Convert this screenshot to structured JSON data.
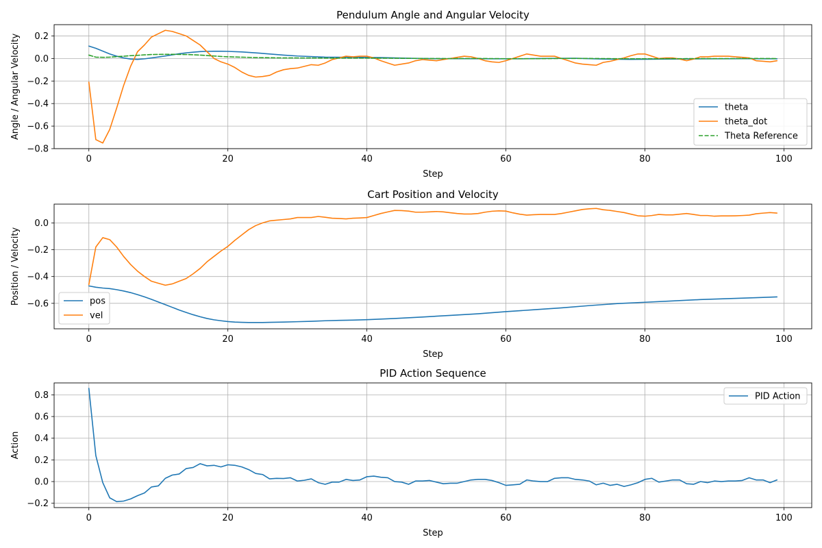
{
  "chart_data": [
    {
      "type": "line",
      "title": "Pendulum Angle and Angular Velocity",
      "xlabel": "Step",
      "ylabel": "Angle / Angular Velocity",
      "xlim": [
        -5,
        104
      ],
      "ylim": [
        -0.8,
        0.3
      ],
      "xticks": [
        0,
        20,
        40,
        60,
        80,
        100
      ],
      "yticks": [
        -0.8,
        -0.6,
        -0.4,
        -0.2,
        0.0,
        0.2
      ],
      "ytick_labels": [
        "−0.8",
        "−0.6",
        "−0.4",
        "−0.2",
        "0.0",
        "0.2"
      ],
      "grid": true,
      "legend_position": "lower-right",
      "series": [
        {
          "name": "theta",
          "color": "#1f77b4",
          "dash": "solid",
          "x": [
            0,
            1,
            2,
            3,
            4,
            5,
            6,
            7,
            8,
            9,
            10,
            11,
            12,
            13,
            14,
            15,
            16,
            17,
            18,
            19,
            20,
            22,
            24,
            26,
            28,
            30,
            34,
            38,
            42,
            46,
            50,
            54,
            58,
            62,
            66,
            70,
            74,
            78,
            82,
            86,
            90,
            94,
            99
          ],
          "values": [
            0.11,
            0.09,
            0.065,
            0.04,
            0.02,
            0.005,
            -0.005,
            -0.008,
            -0.003,
            0.005,
            0.013,
            0.022,
            0.032,
            0.042,
            0.05,
            0.056,
            0.061,
            0.063,
            0.064,
            0.064,
            0.063,
            0.058,
            0.05,
            0.04,
            0.03,
            0.022,
            0.012,
            0.01,
            0.008,
            0.002,
            -0.002,
            -0.002,
            -0.003,
            -0.003,
            0.0,
            0.002,
            -0.005,
            -0.008,
            -0.006,
            -0.004,
            -0.003,
            -0.002,
            -0.003
          ]
        },
        {
          "name": "theta_dot",
          "color": "#ff7f0e",
          "dash": "solid",
          "x": [
            0,
            1,
            2,
            3,
            4,
            5,
            6,
            7,
            8,
            9,
            10,
            11,
            12,
            13,
            14,
            15,
            16,
            17,
            18,
            19,
            20,
            21,
            22,
            23,
            24,
            25,
            26,
            27,
            28,
            29,
            30,
            31,
            32,
            33,
            34,
            35,
            36,
            37,
            38,
            39,
            40,
            41,
            42,
            43,
            44,
            45,
            46,
            47,
            48,
            49,
            50,
            51,
            52,
            53,
            54,
            55,
            56,
            57,
            58,
            59,
            60,
            61,
            62,
            63,
            64,
            65,
            66,
            67,
            68,
            69,
            70,
            71,
            72,
            73,
            74,
            75,
            76,
            77,
            78,
            79,
            80,
            81,
            82,
            83,
            84,
            85,
            86,
            87,
            88,
            89,
            90,
            91,
            92,
            93,
            94,
            95,
            96,
            97,
            98,
            99
          ],
          "values": [
            -0.21,
            -0.72,
            -0.75,
            -0.63,
            -0.44,
            -0.24,
            -0.07,
            0.06,
            0.12,
            0.19,
            0.22,
            0.25,
            0.24,
            0.22,
            0.2,
            0.16,
            0.12,
            0.06,
            0.0,
            -0.03,
            -0.05,
            -0.08,
            -0.12,
            -0.15,
            -0.165,
            -0.16,
            -0.15,
            -0.12,
            -0.1,
            -0.09,
            -0.085,
            -0.07,
            -0.055,
            -0.06,
            -0.04,
            -0.01,
            0.005,
            0.02,
            0.015,
            0.02,
            0.02,
            0.005,
            -0.02,
            -0.04,
            -0.06,
            -0.05,
            -0.04,
            -0.02,
            -0.01,
            -0.015,
            -0.02,
            -0.01,
            0.0,
            0.01,
            0.02,
            0.015,
            0.0,
            -0.02,
            -0.03,
            -0.035,
            -0.02,
            0.0,
            0.02,
            0.04,
            0.03,
            0.02,
            0.02,
            0.02,
            0.0,
            -0.02,
            -0.04,
            -0.05,
            -0.055,
            -0.06,
            -0.035,
            -0.025,
            -0.01,
            0.005,
            0.025,
            0.04,
            0.04,
            0.02,
            0.0,
            0.005,
            0.005,
            -0.005,
            -0.02,
            -0.005,
            0.015,
            0.015,
            0.02,
            0.02,
            0.02,
            0.015,
            0.01,
            0.005,
            -0.02,
            -0.025,
            -0.03,
            -0.02
          ]
        },
        {
          "name": "Theta Reference",
          "color": "#2ca02c",
          "dash": "dashed",
          "x": [
            0,
            1,
            2,
            3,
            4,
            5,
            6,
            7,
            8,
            9,
            10,
            11,
            12,
            13,
            14,
            15,
            16,
            17,
            18,
            19,
            20,
            24,
            28,
            32,
            36,
            40,
            44,
            48,
            52,
            56,
            60,
            64,
            68,
            72,
            76,
            80,
            84,
            88,
            92,
            96,
            99
          ],
          "values": [
            0.03,
            0.012,
            0.01,
            0.012,
            0.016,
            0.02,
            0.025,
            0.028,
            0.032,
            0.035,
            0.036,
            0.037,
            0.037,
            0.036,
            0.035,
            0.033,
            0.03,
            0.026,
            0.022,
            0.018,
            0.015,
            0.008,
            0.005,
            0.004,
            0.003,
            0.003,
            0.002,
            0.0,
            -0.001,
            0.0,
            -0.002,
            -0.002,
            0.0,
            0.0,
            -0.002,
            -0.003,
            -0.002,
            -0.001,
            -0.001,
            0.0,
            -0.001
          ]
        }
      ]
    },
    {
      "type": "line",
      "title": "Cart Position and Velocity",
      "xlabel": "Step",
      "ylabel": "Position / Velocity",
      "xlim": [
        -5,
        104
      ],
      "ylim": [
        -0.79,
        0.14
      ],
      "xticks": [
        0,
        20,
        40,
        60,
        80,
        100
      ],
      "yticks": [
        -0.6,
        -0.4,
        -0.2,
        0.0
      ],
      "ytick_labels": [
        "−0.6",
        "−0.4",
        "−0.2",
        "0.0"
      ],
      "grid": true,
      "legend_position": "center-left",
      "series": [
        {
          "name": "pos",
          "color": "#1f77b4",
          "dash": "solid",
          "x": [
            0,
            1,
            2,
            3,
            4,
            5,
            6,
            7,
            8,
            9,
            10,
            11,
            12,
            13,
            14,
            15,
            16,
            17,
            18,
            19,
            20,
            21,
            22,
            23,
            24,
            25,
            26,
            28,
            30,
            32,
            34,
            36,
            38,
            40,
            44,
            48,
            52,
            56,
            60,
            64,
            68,
            72,
            76,
            80,
            84,
            88,
            92,
            96,
            99
          ],
          "values": [
            -0.47,
            -0.48,
            -0.486,
            -0.49,
            -0.498,
            -0.508,
            -0.52,
            -0.535,
            -0.552,
            -0.57,
            -0.59,
            -0.61,
            -0.63,
            -0.65,
            -0.668,
            -0.685,
            -0.7,
            -0.713,
            -0.723,
            -0.73,
            -0.736,
            -0.74,
            -0.742,
            -0.743,
            -0.743,
            -0.743,
            -0.742,
            -0.74,
            -0.737,
            -0.734,
            -0.73,
            -0.727,
            -0.725,
            -0.722,
            -0.713,
            -0.702,
            -0.69,
            -0.678,
            -0.662,
            -0.648,
            -0.634,
            -0.617,
            -0.602,
            -0.592,
            -0.582,
            -0.572,
            -0.565,
            -0.558,
            -0.552
          ]
        },
        {
          "name": "vel",
          "color": "#ff7f0e",
          "dash": "solid",
          "x": [
            0,
            1,
            2,
            3,
            4,
            5,
            6,
            7,
            8,
            9,
            10,
            11,
            12,
            13,
            14,
            15,
            16,
            17,
            18,
            19,
            20,
            21,
            22,
            23,
            24,
            25,
            26,
            27,
            28,
            29,
            30,
            31,
            32,
            33,
            34,
            35,
            36,
            37,
            38,
            39,
            40,
            41,
            42,
            43,
            44,
            45,
            46,
            47,
            48,
            49,
            50,
            51,
            52,
            53,
            54,
            55,
            56,
            57,
            58,
            59,
            60,
            61,
            62,
            63,
            64,
            65,
            66,
            67,
            68,
            69,
            70,
            71,
            72,
            73,
            74,
            75,
            76,
            77,
            78,
            79,
            80,
            81,
            82,
            83,
            84,
            85,
            86,
            87,
            88,
            89,
            90,
            91,
            92,
            93,
            94,
            95,
            96,
            97,
            98,
            99
          ],
          "values": [
            -0.46,
            -0.18,
            -0.11,
            -0.125,
            -0.18,
            -0.25,
            -0.31,
            -0.36,
            -0.4,
            -0.435,
            -0.45,
            -0.465,
            -0.455,
            -0.435,
            -0.415,
            -0.38,
            -0.34,
            -0.29,
            -0.25,
            -0.21,
            -0.175,
            -0.13,
            -0.09,
            -0.05,
            -0.02,
            0.0,
            0.015,
            0.02,
            0.025,
            0.03,
            0.04,
            0.04,
            0.04,
            0.048,
            0.042,
            0.035,
            0.033,
            0.03,
            0.035,
            0.037,
            0.04,
            0.055,
            0.07,
            0.082,
            0.093,
            0.092,
            0.088,
            0.08,
            0.08,
            0.082,
            0.085,
            0.082,
            0.076,
            0.07,
            0.066,
            0.066,
            0.07,
            0.08,
            0.087,
            0.09,
            0.088,
            0.075,
            0.065,
            0.058,
            0.061,
            0.063,
            0.063,
            0.063,
            0.07,
            0.08,
            0.09,
            0.1,
            0.105,
            0.108,
            0.098,
            0.093,
            0.085,
            0.077,
            0.065,
            0.053,
            0.05,
            0.055,
            0.063,
            0.06,
            0.06,
            0.065,
            0.07,
            0.063,
            0.055,
            0.055,
            0.05,
            0.052,
            0.052,
            0.053,
            0.055,
            0.058,
            0.068,
            0.073,
            0.077,
            0.073
          ]
        }
      ]
    },
    {
      "type": "line",
      "title": "PID Action Sequence",
      "xlabel": "Step",
      "ylabel": "Action",
      "xlim": [
        -5,
        104
      ],
      "ylim": [
        -0.24,
        0.91
      ],
      "xticks": [
        0,
        20,
        40,
        60,
        80,
        100
      ],
      "yticks": [
        -0.2,
        0.0,
        0.2,
        0.4,
        0.6,
        0.8
      ],
      "ytick_labels": [
        "−0.2",
        "0.0",
        "0.2",
        "0.4",
        "0.6",
        "0.8"
      ],
      "grid": true,
      "legend_position": "upper-right",
      "series": [
        {
          "name": "PID Action",
          "color": "#1f77b4",
          "dash": "solid",
          "x": [
            0,
            1,
            2,
            3,
            4,
            5,
            6,
            7,
            8,
            9,
            10,
            11,
            12,
            13,
            14,
            15,
            16,
            17,
            18,
            19,
            20,
            21,
            22,
            23,
            24,
            25,
            26,
            27,
            28,
            29,
            30,
            31,
            32,
            33,
            34,
            35,
            36,
            37,
            38,
            39,
            40,
            41,
            42,
            43,
            44,
            45,
            46,
            47,
            48,
            49,
            50,
            51,
            52,
            53,
            54,
            55,
            56,
            57,
            58,
            59,
            60,
            61,
            62,
            63,
            64,
            65,
            66,
            67,
            68,
            69,
            70,
            71,
            72,
            73,
            74,
            75,
            76,
            77,
            78,
            79,
            80,
            81,
            82,
            83,
            84,
            85,
            86,
            87,
            88,
            89,
            90,
            91,
            92,
            93,
            94,
            95,
            96,
            97,
            98,
            99
          ],
          "values": [
            0.86,
            0.24,
            -0.01,
            -0.15,
            -0.185,
            -0.18,
            -0.16,
            -0.13,
            -0.105,
            -0.05,
            -0.04,
            0.03,
            0.06,
            0.07,
            0.12,
            0.13,
            0.165,
            0.145,
            0.15,
            0.135,
            0.155,
            0.15,
            0.135,
            0.11,
            0.075,
            0.065,
            0.025,
            0.03,
            0.028,
            0.035,
            0.005,
            0.012,
            0.025,
            -0.01,
            -0.025,
            -0.005,
            -0.005,
            0.02,
            0.01,
            0.015,
            0.045,
            0.05,
            0.04,
            0.035,
            0.0,
            -0.005,
            -0.025,
            0.005,
            0.005,
            0.01,
            -0.005,
            -0.02,
            -0.015,
            -0.015,
            0.0,
            0.015,
            0.02,
            0.02,
            0.01,
            -0.01,
            -0.035,
            -0.03,
            -0.025,
            0.015,
            0.005,
            0.0,
            0.0,
            0.03,
            0.035,
            0.035,
            0.02,
            0.015,
            0.005,
            -0.03,
            -0.015,
            -0.035,
            -0.025,
            -0.045,
            -0.03,
            -0.01,
            0.02,
            0.03,
            -0.005,
            0.005,
            0.015,
            0.015,
            -0.02,
            -0.025,
            0.0,
            -0.01,
            0.005,
            0.0,
            0.005,
            0.005,
            0.01,
            0.035,
            0.015,
            0.015,
            -0.01,
            0.015
          ]
        }
      ]
    }
  ]
}
